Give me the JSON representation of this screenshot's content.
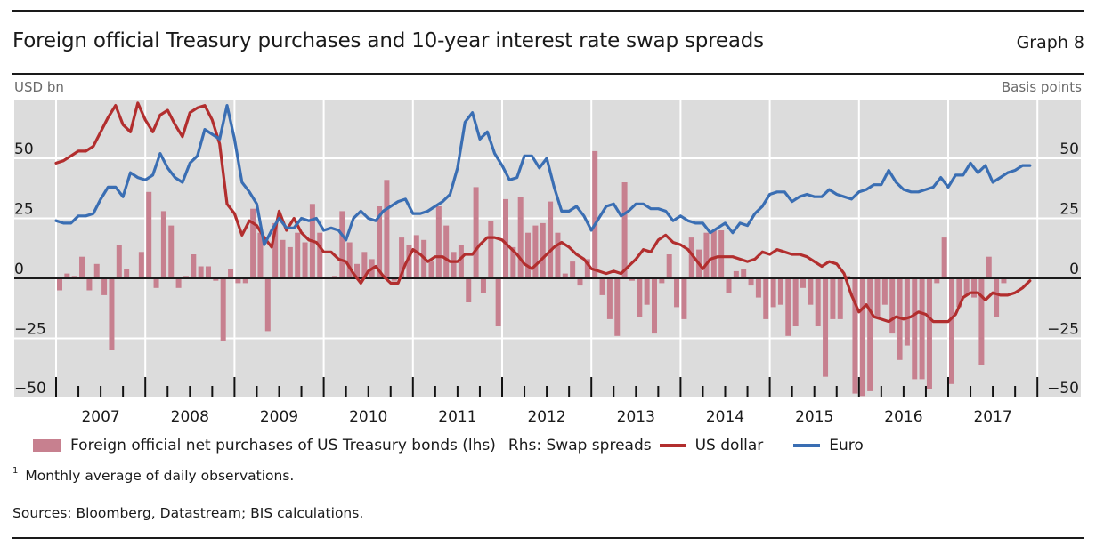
{
  "header": {
    "title": "Foreign official Treasury purchases and 10-year interest rate swap spreads",
    "graph_number": "Graph 8"
  },
  "legend": {
    "bars_label": "Foreign official net purchases of US Treasury bonds (lhs)",
    "rhs_prefix": "Rhs: Swap spreads",
    "usd_label": "US dollar",
    "eur_label": "Euro"
  },
  "footnote": {
    "marker": "1",
    "text": "Monthly average of daily observations."
  },
  "sources": "Sources: Bloomberg, Datastream; BIS calculations.",
  "colors": {
    "bars": "#c7808f",
    "usd": "#b22e2e",
    "eur": "#3a6eb3",
    "plot_bg": "#dcdcdc",
    "grid": "#ffffff"
  },
  "chart_data": {
    "type": "bar+line",
    "title": "Foreign official Treasury purchases and 10-year interest rate swap spreads",
    "frequency": "monthly",
    "x_start": "2007-01",
    "x_end": "2017-12",
    "x_tick_labels": [
      "2007",
      "2008",
      "2009",
      "2010",
      "2011",
      "2012",
      "2013",
      "2014",
      "2015",
      "2016",
      "2017"
    ],
    "y_left": {
      "label": "USD bn",
      "range": [
        -50,
        75
      ],
      "ticks": [
        -50,
        -25,
        0,
        25,
        50
      ]
    },
    "y_right": {
      "label": "Basis points",
      "range": [
        -50,
        75
      ],
      "ticks": [
        -50,
        -25,
        0,
        25,
        50
      ]
    },
    "grid": true,
    "legend_position": "bottom",
    "series": [
      {
        "name": "Foreign official net purchases of US Treasury bonds (lhs)",
        "type": "bar",
        "axis": "left",
        "values": [
          -5,
          2,
          1,
          9,
          -5,
          6,
          -7,
          -30,
          14,
          4,
          0,
          11,
          36,
          -4,
          28,
          22,
          -4,
          1,
          10,
          5,
          5,
          -1,
          -26,
          4,
          -2,
          -2,
          29,
          19,
          -22,
          23,
          16,
          13,
          19,
          15,
          31,
          19,
          0,
          1,
          28,
          15,
          6,
          11,
          8,
          30,
          41,
          -1,
          17,
          14,
          18,
          16,
          7,
          30,
          22,
          11,
          14,
          -10,
          38,
          -6,
          24,
          -20,
          33,
          13,
          34,
          19,
          22,
          23,
          32,
          19,
          2,
          7,
          -3,
          8,
          53,
          -7,
          -17,
          -24,
          40,
          -1,
          -16,
          -11,
          -23,
          -2,
          10,
          -12,
          -17,
          17,
          12,
          19,
          20,
          20,
          -6,
          3,
          4,
          -3,
          -8,
          -17,
          -12,
          -11,
          -24,
          -20,
          -4,
          -11,
          -20,
          -41,
          -17,
          -17,
          1,
          -48,
          -49,
          -47,
          -16,
          -11,
          -23,
          -34,
          -28,
          -42,
          -42,
          -46,
          -2,
          17,
          -44,
          -12,
          -7,
          -8,
          -36,
          9,
          -16,
          -2,
          null,
          null,
          null,
          null
        ]
      },
      {
        "name": "US dollar",
        "type": "line",
        "axis": "right",
        "values": [
          48,
          49,
          51,
          53,
          53,
          55,
          61,
          67,
          72,
          64,
          61,
          73,
          66,
          61,
          68,
          70,
          64,
          59,
          69,
          71,
          72,
          66,
          56,
          31,
          27,
          18,
          24,
          22,
          17,
          13,
          28,
          20,
          25,
          19,
          16,
          15,
          11,
          11,
          8,
          7,
          2,
          -2,
          3,
          5,
          1,
          -2,
          -2,
          6,
          12,
          10,
          7,
          9,
          9,
          7,
          7,
          10,
          10,
          14,
          17,
          17,
          16,
          13,
          10,
          6,
          4,
          7,
          10,
          13,
          15,
          13,
          10,
          8,
          4,
          3,
          2,
          3,
          2,
          5,
          8,
          12,
          11,
          16,
          18,
          15,
          14,
          12,
          8,
          4,
          8,
          9,
          9,
          9,
          8,
          7,
          8,
          11,
          10,
          12,
          11,
          10,
          10,
          9,
          7,
          5,
          7,
          6,
          2,
          -7,
          -14,
          -11,
          -16,
          -17,
          -18,
          -16,
          -17,
          -16,
          -14,
          -15,
          -18,
          -18,
          -18,
          -15,
          -8,
          -6,
          -6,
          -9,
          -6,
          -7,
          -7,
          -6,
          -4,
          -1
        ]
      },
      {
        "name": "Euro",
        "type": "line",
        "axis": "right",
        "values": [
          24,
          23,
          23,
          26,
          26,
          27,
          33,
          38,
          38,
          34,
          44,
          42,
          41,
          43,
          52,
          46,
          42,
          40,
          48,
          51,
          62,
          60,
          58,
          72,
          58,
          40,
          36,
          31,
          14,
          20,
          25,
          21,
          21,
          25,
          24,
          25,
          20,
          21,
          20,
          16,
          25,
          28,
          25,
          24,
          28,
          30,
          32,
          33,
          27,
          27,
          28,
          30,
          32,
          35,
          46,
          65,
          69,
          58,
          61,
          52,
          47,
          41,
          42,
          51,
          51,
          46,
          50,
          38,
          28,
          28,
          30,
          26,
          20,
          25,
          30,
          31,
          26,
          28,
          31,
          31,
          29,
          29,
          28,
          24,
          26,
          24,
          23,
          23,
          19,
          21,
          23,
          19,
          23,
          22,
          27,
          30,
          35,
          36,
          36,
          32,
          34,
          35,
          34,
          34,
          37,
          35,
          34,
          33,
          36,
          37,
          39,
          39,
          45,
          40,
          37,
          36,
          36,
          37,
          38,
          42,
          38,
          43,
          43,
          48,
          44,
          47,
          40,
          42,
          44,
          45,
          47,
          47
        ]
      }
    ]
  }
}
